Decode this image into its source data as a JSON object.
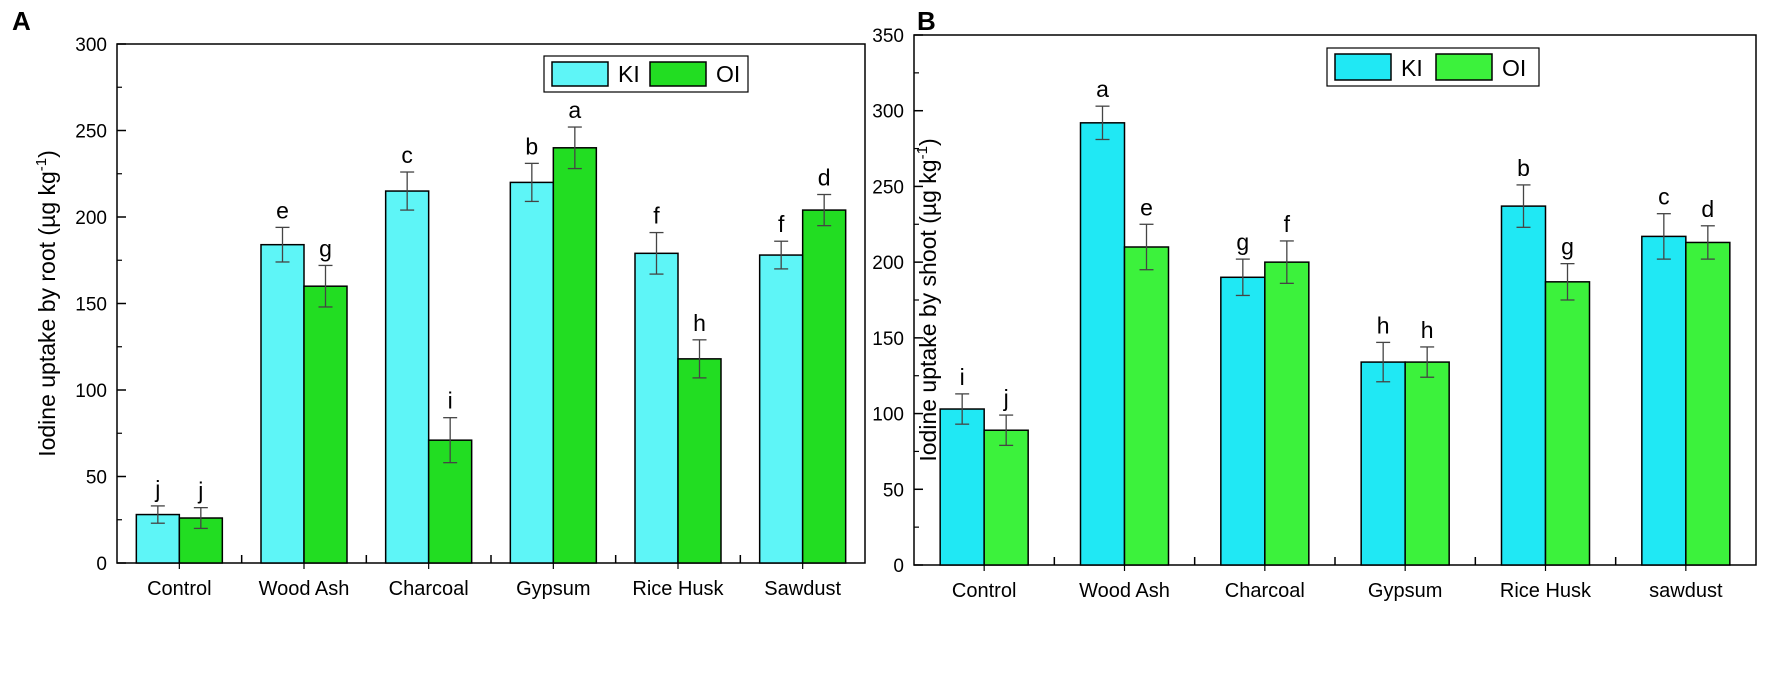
{
  "colors": {
    "kl_a": "#5ef5f7",
    "ol_a": "#22dd22",
    "kl_b": "#20e8f4",
    "ol_b": "#3cf23c",
    "axis": "#000000",
    "error_bar": "#444444"
  },
  "chart_data": [
    {
      "type": "bar",
      "panel_label": "A",
      "categories": [
        "Control",
        "Wood Ash",
        "Charcoal",
        "Gypsum",
        "Rice Husk",
        "Sawdust"
      ],
      "series": [
        {
          "name": "KI",
          "values": [
            28,
            184,
            215,
            220,
            179,
            178
          ],
          "errors": [
            5,
            10,
            11,
            11,
            12,
            8
          ],
          "letters": [
            "j",
            "e",
            "c",
            "b",
            "f",
            "f"
          ]
        },
        {
          "name": "OI",
          "values": [
            26,
            160,
            71,
            240,
            118,
            204
          ],
          "errors": [
            6,
            12,
            13,
            12,
            11,
            9
          ],
          "letters": [
            "j",
            "g",
            "i",
            "a",
            "h",
            "d"
          ]
        }
      ],
      "ylabel_main": "Iodine uptake by root (µg kg",
      "ylabel_sup": "-1",
      "ylabel_end": ")",
      "ylim": [
        0,
        300
      ],
      "yticks": [
        0,
        50,
        100,
        150,
        200,
        250,
        300
      ],
      "legend_position": "top-right"
    },
    {
      "type": "bar",
      "panel_label": "B",
      "categories": [
        "Control",
        "Wood Ash",
        "Charcoal",
        "Gypsum",
        "Rice Husk",
        "sawdust"
      ],
      "series": [
        {
          "name": "KI",
          "values": [
            103,
            292,
            190,
            134,
            237,
            217
          ],
          "errors": [
            10,
            11,
            12,
            13,
            14,
            15
          ],
          "letters": [
            "i",
            "a",
            "g",
            "h",
            "b",
            "c"
          ]
        },
        {
          "name": "OI",
          "values": [
            89,
            210,
            200,
            134,
            187,
            213
          ],
          "errors": [
            10,
            15,
            14,
            10,
            12,
            11
          ],
          "letters": [
            "j",
            "e",
            "f",
            "h",
            "g",
            "d"
          ]
        }
      ],
      "ylabel_main": "Iodine uptake by shoot (µg kg",
      "ylabel_sup": "-1",
      "ylabel_end": ")",
      "ylim": [
        0,
        350
      ],
      "yticks": [
        0,
        50,
        100,
        150,
        200,
        250,
        300,
        350
      ],
      "legend_position": "top-right"
    }
  ]
}
